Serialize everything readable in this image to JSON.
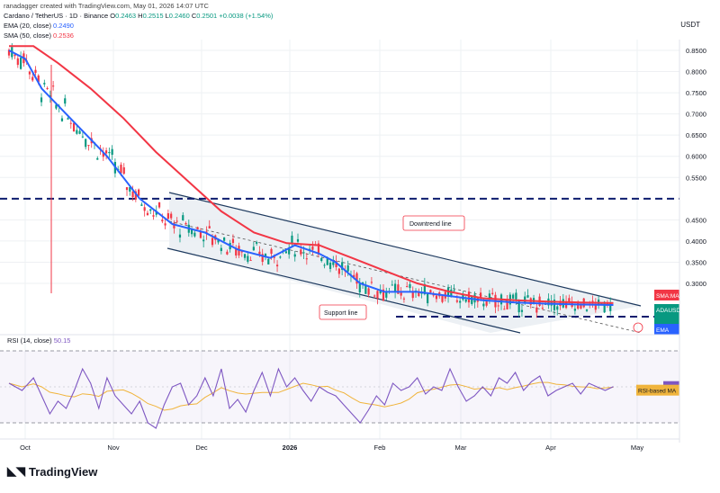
{
  "author_line": "ranadagger created with TradingView.com, May 01, 2026 14:07 UTC",
  "symbol": "Cardano / TetherUS · 1D · Binance",
  "ohlc": {
    "o_label": "O",
    "o": "0.2463",
    "h_label": "H",
    "h": "0.2515",
    "l_label": "L",
    "l": "0.2460",
    "c_label": "C",
    "c": "0.2501",
    "chg": "+0.0038 (+1.54%)"
  },
  "ema_label": "EMA (20, close)",
  "ema_value": "0.2490",
  "sma_label": "SMA (50, close)",
  "sma_value": "0.2536",
  "rsi_label": "RSI (14, close)",
  "rsi_value": "50.15",
  "currency": "USDT",
  "brand": "TradingView",
  "colors": {
    "up": "#089981",
    "down": "#f23645",
    "ema": "#2962ff",
    "sma": "#f23645",
    "rsi": "#7e57c2",
    "rsi_ma": "#f0b43c",
    "channel": "#1e3a5f",
    "support_dash": "#0d1c6e",
    "grid": "#eef0f3"
  },
  "annotations": {
    "downtrend": "Downtrend line",
    "support": "Support line"
  },
  "chart_data": {
    "type": "candlestick",
    "title": "Cardano / TetherUS · 1D · Binance",
    "x_tick_labels": [
      "Oct",
      "Nov",
      "Dec",
      "2026",
      "Feb",
      "Mar",
      "Apr",
      "May"
    ],
    "y_tick_labels": [
      "0.8500",
      "0.8000",
      "0.7500",
      "0.7000",
      "0.6500",
      "0.6000",
      "0.5500",
      "0.4500",
      "0.4000",
      "0.3500",
      "0.3000"
    ],
    "ylim": [
      0.2,
      0.88
    ],
    "horizontal_levels": [
      {
        "label": "0.5000",
        "value": 0.5
      },
      {
        "label": "",
        "value": 0.23
      }
    ],
    "price_labels": [
      {
        "label": "SMA:MA",
        "value": "0.2536",
        "color": "#f23645"
      },
      {
        "label": "ADAUSDT",
        "value": "0.2501",
        "extra": [
          "-68.97%",
          "09:52:16"
        ],
        "color": "#089981"
      },
      {
        "label": "EMA",
        "value": "0.2490",
        "color": "#2962ff"
      }
    ],
    "series": [
      {
        "name": "EMA (20, close)",
        "last": 0.249,
        "points": [
          [
            0,
            0.85
          ],
          [
            10,
            0.83
          ],
          [
            20,
            0.76
          ],
          [
            40,
            0.68
          ],
          [
            60,
            0.6
          ],
          [
            80,
            0.5
          ],
          [
            100,
            0.44
          ],
          [
            120,
            0.42
          ],
          [
            140,
            0.38
          ],
          [
            160,
            0.36
          ],
          [
            175,
            0.39
          ],
          [
            190,
            0.37
          ],
          [
            200,
            0.35
          ],
          [
            215,
            0.3
          ],
          [
            230,
            0.28
          ],
          [
            250,
            0.28
          ],
          [
            270,
            0.27
          ],
          [
            290,
            0.26
          ],
          [
            310,
            0.255
          ],
          [
            330,
            0.252
          ],
          [
            350,
            0.25
          ],
          [
            370,
            0.249
          ]
        ]
      },
      {
        "name": "SMA (50, close)",
        "last": 0.2536,
        "points": [
          [
            0,
            0.86
          ],
          [
            15,
            0.86
          ],
          [
            30,
            0.82
          ],
          [
            50,
            0.76
          ],
          [
            70,
            0.69
          ],
          [
            90,
            0.61
          ],
          [
            110,
            0.54
          ],
          [
            130,
            0.47
          ],
          [
            150,
            0.42
          ],
          [
            170,
            0.395
          ],
          [
            190,
            0.39
          ],
          [
            210,
            0.36
          ],
          [
            230,
            0.33
          ],
          [
            250,
            0.3
          ],
          [
            270,
            0.28
          ],
          [
            290,
            0.265
          ],
          [
            310,
            0.26
          ],
          [
            330,
            0.257
          ],
          [
            350,
            0.255
          ],
          [
            370,
            0.2536
          ]
        ]
      }
    ],
    "rsi": {
      "label": "RSI (14, close)",
      "value": "50.15",
      "ma_label": "RSI-based MA",
      "ma_value": "48.16",
      "ylim": [
        25,
        75
      ],
      "levels": [
        70,
        30
      ],
      "y_tick_labels": [
        "70.00",
        "60.00",
        "40.00",
        "30.00"
      ],
      "points": [
        [
          0,
          52
        ],
        [
          8,
          48
        ],
        [
          15,
          55
        ],
        [
          20,
          45
        ],
        [
          25,
          35
        ],
        [
          30,
          42
        ],
        [
          35,
          38
        ],
        [
          40,
          48
        ],
        [
          45,
          60
        ],
        [
          50,
          52
        ],
        [
          55,
          38
        ],
        [
          60,
          55
        ],
        [
          65,
          45
        ],
        [
          70,
          40
        ],
        [
          75,
          35
        ],
        [
          80,
          42
        ],
        [
          85,
          30
        ],
        [
          90,
          27
        ],
        [
          95,
          40
        ],
        [
          100,
          50
        ],
        [
          105,
          52
        ],
        [
          110,
          40
        ],
        [
          115,
          45
        ],
        [
          120,
          55
        ],
        [
          125,
          45
        ],
        [
          130,
          60
        ],
        [
          135,
          38
        ],
        [
          140,
          43
        ],
        [
          145,
          36
        ],
        [
          150,
          48
        ],
        [
          155,
          58
        ],
        [
          160,
          45
        ],
        [
          165,
          60
        ],
        [
          170,
          50
        ],
        [
          175,
          55
        ],
        [
          180,
          48
        ],
        [
          185,
          42
        ],
        [
          190,
          50
        ],
        [
          195,
          47
        ],
        [
          200,
          45
        ],
        [
          205,
          40
        ],
        [
          210,
          35
        ],
        [
          215,
          30
        ],
        [
          220,
          37
        ],
        [
          225,
          45
        ],
        [
          230,
          40
        ],
        [
          235,
          52
        ],
        [
          240,
          48
        ],
        [
          245,
          50
        ],
        [
          250,
          55
        ],
        [
          255,
          46
        ],
        [
          260,
          50
        ],
        [
          265,
          48
        ],
        [
          270,
          60
        ],
        [
          275,
          50
        ],
        [
          280,
          42
        ],
        [
          285,
          45
        ],
        [
          290,
          50
        ],
        [
          295,
          45
        ],
        [
          300,
          55
        ],
        [
          305,
          52
        ],
        [
          310,
          58
        ],
        [
          315,
          48
        ],
        [
          320,
          53
        ],
        [
          325,
          56
        ],
        [
          330,
          45
        ],
        [
          335,
          48
        ],
        [
          340,
          50
        ],
        [
          345,
          52
        ],
        [
          350,
          46
        ],
        [
          355,
          52
        ],
        [
          360,
          50
        ],
        [
          365,
          48
        ],
        [
          370,
          50.15
        ]
      ]
    }
  }
}
